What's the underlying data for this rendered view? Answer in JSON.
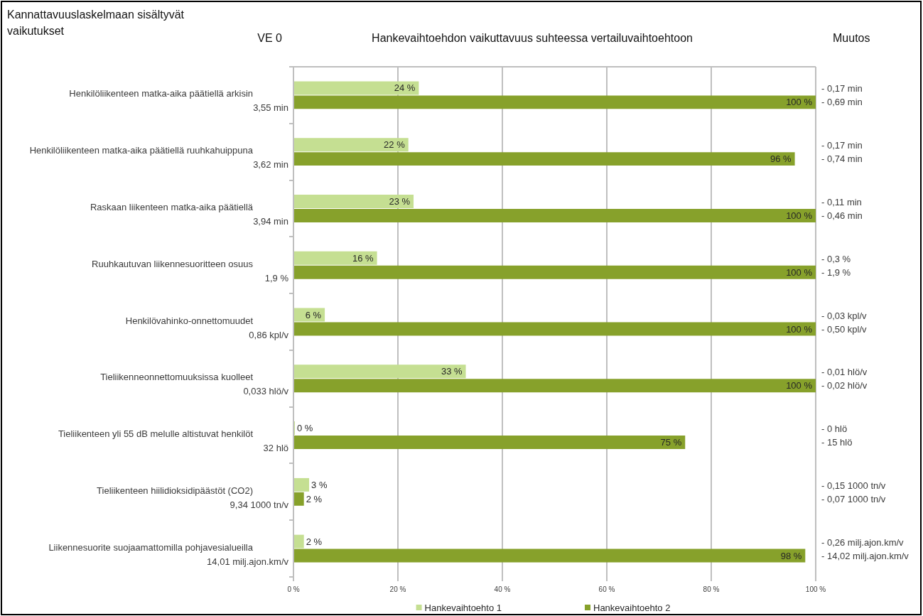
{
  "chart_data": {
    "type": "bar",
    "orientation": "horizontal",
    "title": "Hankevaihtoehdon vaikuttavuus suhteessa vertailuvaihtoehtoon",
    "ylabel": "Kannattavuuslaskelmaan sisältyvät vaikutukset",
    "y2label": "Muutos",
    "annotations": [
      "VE 0"
    ],
    "categories": [
      "Henkilöliikenteen matka-aika päätiellä arkisin\n3,55 min",
      "Henkilöliikenteen matka-aika päätiellä ruuhkahuippuna\n3,62 min",
      "Raskaan liikenteen matka-aika päätiellä\n3,94 min",
      "Ruuhkautuvan liikennesuoritteen osuus\n1,9 %",
      "Henkilövahinko-onnettomuudet\n0,86 kpl/v",
      "Tieliikenneonnettomuuksissa kuolleet\n0,033 hlö/v",
      "Tieliikenteen yli 55 dB melulle altistuvat henkilöt\n32 hlö",
      "Tieliikenteen hiilidioksidipäästöt (CO2)\n9,34 1000 tn/v",
      "Liikennesuorite suojaamattomilla pohjavesialueilla\n14,01 milj.ajon.km/v"
    ],
    "y2_categories": [
      "- 0,17 min\n- 0,69 min",
      "- 0,17 min\n- 0,74 min",
      "- 0,11 min\n- 0,46 min",
      "- 0,3 %\n- 1,9 %",
      "- 0,03 kpl/v\n- 0,50 kpl/v",
      "- 0,01 hlö/v\n- 0,02 hlö/v",
      "- 0 hlö\n- 15 hlö",
      "- 0,15 1000 tn/v\n- 0,07 1000 tn/v",
      "- 0,26 milj.ajon.km/v\n- 14,02 milj.ajon.km/v"
    ],
    "series": [
      {
        "name": "Hankevaihtoehto 1",
        "color": "#c5df92",
        "values": [
          24,
          22,
          23,
          16,
          6,
          33,
          0,
          3,
          2
        ],
        "value_labels": [
          "24 %",
          "22 %",
          "23 %",
          "16 %",
          "6 %",
          "33 %",
          "0 %",
          "3 %",
          "2 %"
        ]
      },
      {
        "name": "Hankevaihtoehto 2",
        "color": "#87a12b",
        "values": [
          100,
          96,
          100,
          100,
          100,
          100,
          75,
          2,
          98
        ],
        "value_labels": [
          "100 %",
          "96 %",
          "100 %",
          "100 %",
          "100 %",
          "100 %",
          "75 %",
          "2 %",
          "98 %"
        ]
      }
    ],
    "xlim": [
      0,
      100
    ],
    "xticks": [
      {
        "value": 0,
        "label": "0 %"
      },
      {
        "value": 20,
        "label": "20 %"
      },
      {
        "value": 40,
        "label": "40 %"
      },
      {
        "value": 60,
        "label": "60 %"
      },
      {
        "value": 80,
        "label": "80 %"
      },
      {
        "value": 100,
        "label": "100 %"
      }
    ],
    "grid": "x",
    "legend": "bottom"
  }
}
